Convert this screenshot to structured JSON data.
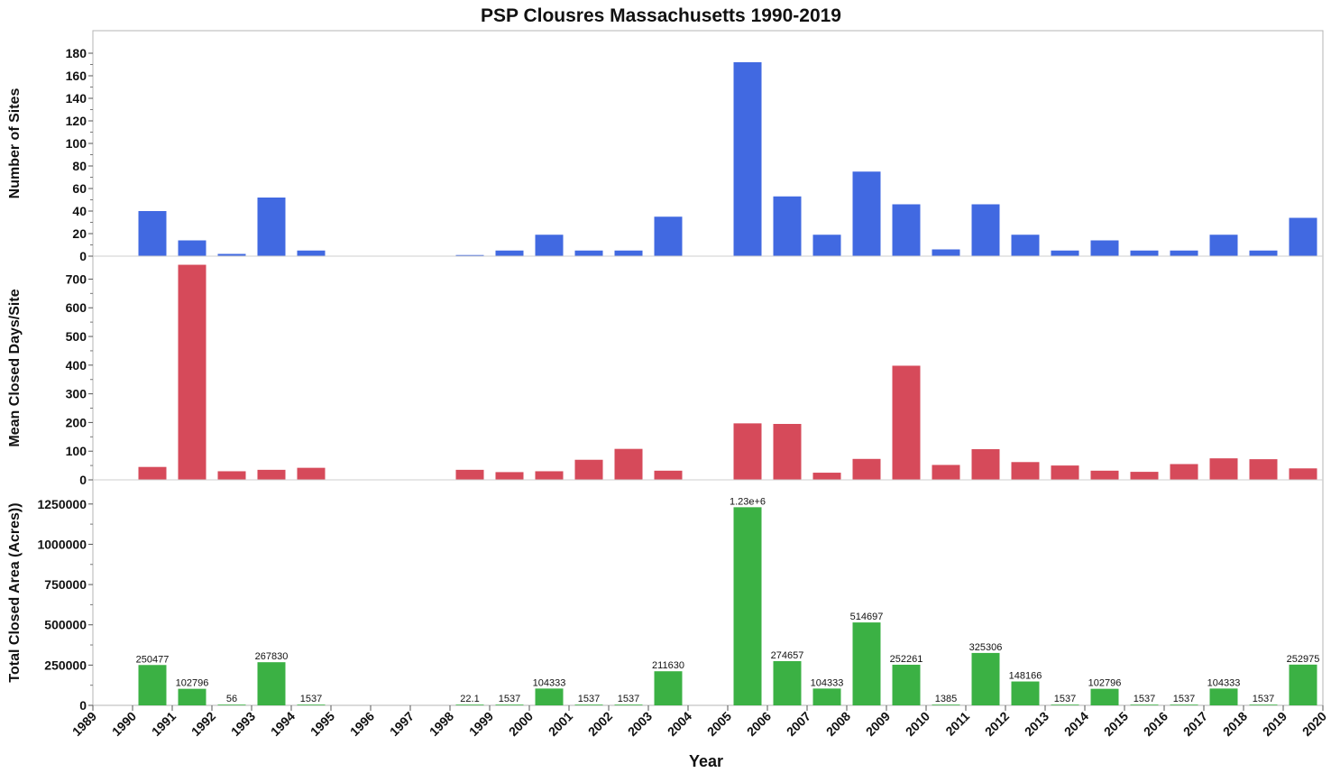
{
  "chart_data": {
    "type": "bar",
    "title": "PSP Clousres Massachusetts 1990-2019",
    "xlabel": "Year",
    "xlim": [
      1989,
      2020
    ],
    "xticks": [
      "1989",
      "1990",
      "1991",
      "1992",
      "1993",
      "1994",
      "1995",
      "1996",
      "1997",
      "1998",
      "1999",
      "2000",
      "2001",
      "2002",
      "2003",
      "2004",
      "2005",
      "2006",
      "2007",
      "2008",
      "2009",
      "2010",
      "2011",
      "2012",
      "2013",
      "2014",
      "2015",
      "2016",
      "2017",
      "2018",
      "2019",
      "2020"
    ],
    "panels": [
      {
        "ylabel": "Number of Sites",
        "color": "#4169E1",
        "ylim": [
          0,
          200
        ],
        "yticks": [
          0,
          20,
          40,
          60,
          80,
          100,
          120,
          140,
          160,
          180
        ],
        "years": [
          1990,
          1991,
          1992,
          1993,
          1994,
          1998,
          1999,
          2000,
          2001,
          2002,
          2003,
          2005,
          2006,
          2007,
          2008,
          2009,
          2010,
          2011,
          2012,
          2013,
          2014,
          2015,
          2016,
          2017,
          2018,
          2019
        ],
        "values": [
          40,
          14,
          2,
          52,
          5,
          1,
          5,
          19,
          5,
          5,
          35,
          172,
          53,
          19,
          75,
          46,
          6,
          46,
          19,
          5,
          14,
          5,
          5,
          19,
          5,
          34
        ]
      },
      {
        "ylabel": "Mean Closed Days/Site",
        "color": "#D64A5A",
        "ylim": [
          0,
          780
        ],
        "yticks": [
          0,
          100,
          200,
          300,
          400,
          500,
          600,
          700
        ],
        "years": [
          1990,
          1991,
          1992,
          1993,
          1994,
          1998,
          1999,
          2000,
          2001,
          2002,
          2003,
          2005,
          2006,
          2007,
          2008,
          2009,
          2010,
          2011,
          2012,
          2013,
          2014,
          2015,
          2016,
          2017,
          2018,
          2019
        ],
        "values": [
          45,
          750,
          30,
          35,
          42,
          35,
          27,
          30,
          70,
          108,
          32,
          197,
          195,
          25,
          73,
          398,
          52,
          107,
          62,
          50,
          32,
          28,
          55,
          75,
          72,
          40
        ]
      },
      {
        "ylabel": "Total Closed Area (Acres))",
        "color": "#3BB144",
        "ylim": [
          0,
          1400000
        ],
        "yticks": [
          0,
          250000,
          500000,
          750000,
          1000000,
          1250000
        ],
        "years": [
          1990,
          1991,
          1992,
          1993,
          1994,
          1998,
          1999,
          2000,
          2001,
          2002,
          2003,
          2005,
          2006,
          2007,
          2008,
          2009,
          2010,
          2011,
          2012,
          2013,
          2014,
          2015,
          2016,
          2017,
          2018,
          2019
        ],
        "values": [
          250477,
          102796,
          56,
          267830,
          1537,
          22.1,
          1537,
          104333,
          1537,
          1537,
          211630,
          1230000,
          274657,
          104333,
          514697,
          252261,
          1385,
          325306,
          148166,
          1537,
          102796,
          1537,
          1537,
          104333,
          1537,
          252975
        ],
        "labels": [
          "250477",
          "102796",
          "56",
          "267830",
          "1537",
          "22.1",
          "1537",
          "104333",
          "1537",
          "1537",
          "211630",
          "1.23e+6",
          "274657",
          "104333",
          "514697",
          "252261",
          "1385",
          "325306",
          "148166",
          "1537",
          "102796",
          "1537",
          "1537",
          "104333",
          "1537",
          "252975"
        ]
      }
    ]
  }
}
